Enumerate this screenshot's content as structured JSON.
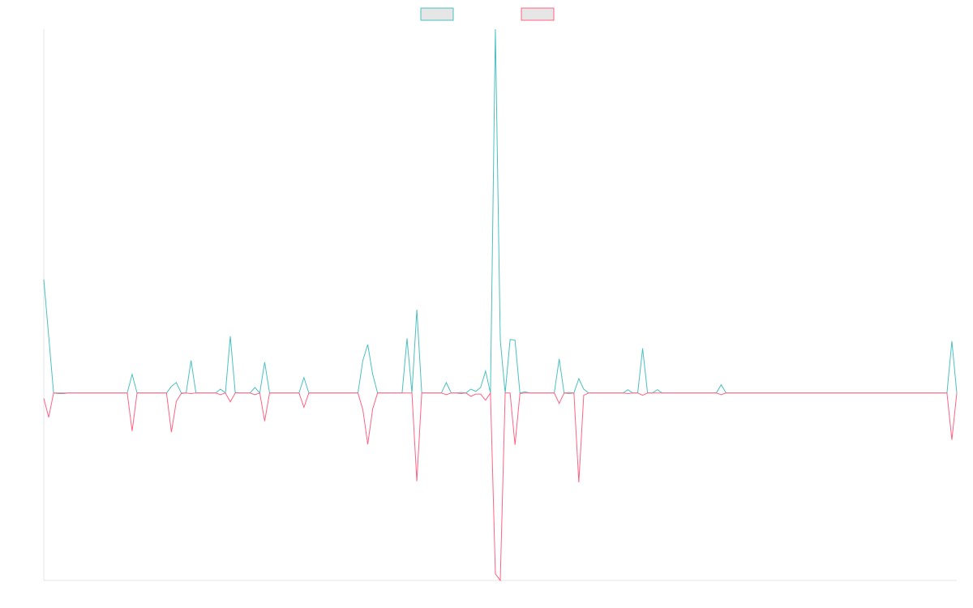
{
  "chart_data": {
    "type": "line",
    "x": [
      0,
      1,
      2,
      3,
      4,
      5,
      6,
      7,
      8,
      9,
      10,
      11,
      12,
      13,
      14,
      15,
      16,
      17,
      18,
      19,
      20,
      21,
      22,
      23,
      24,
      25,
      26,
      27,
      28,
      29,
      30,
      31,
      32,
      33,
      34,
      35,
      36,
      37,
      38,
      39,
      40,
      41,
      42,
      43,
      44,
      45,
      46,
      47,
      48,
      49,
      50,
      51,
      52,
      53,
      54,
      55,
      56,
      57,
      58,
      59,
      60,
      61,
      62,
      63,
      64,
      65,
      66,
      67,
      68,
      69,
      70,
      71,
      72,
      73,
      74,
      75,
      76,
      77,
      78,
      79,
      80,
      81,
      82,
      83,
      84,
      85,
      86,
      87,
      88,
      89,
      90,
      91,
      92,
      93,
      94,
      95,
      96,
      97,
      98,
      99,
      100,
      101,
      102,
      103,
      104,
      105,
      106,
      107,
      108,
      109,
      110,
      111,
      112,
      113,
      114,
      115,
      116,
      117,
      118,
      119,
      120,
      121,
      122,
      123,
      124,
      125,
      126,
      127,
      128,
      129,
      130,
      131,
      132,
      133,
      134,
      135,
      136,
      137,
      138,
      139,
      140,
      141,
      142,
      143,
      144,
      145,
      146,
      147,
      148,
      149,
      150,
      151,
      152,
      153,
      154,
      155,
      156,
      157,
      158,
      159,
      160,
      161,
      162,
      163,
      164,
      165,
      166,
      167,
      168,
      169,
      170,
      171,
      172,
      173,
      174,
      175,
      176,
      177,
      178,
      179,
      180,
      181,
      182,
      183,
      184,
      185,
      186
    ],
    "xlim": [
      0,
      186
    ],
    "ylim": [
      -34,
      66
    ],
    "legend": "top",
    "series": [
      {
        "color": "#4bc0c0",
        "values": [
          20.6,
          10.3,
          0,
          0,
          0,
          0,
          0,
          0,
          0,
          0,
          0,
          0,
          0,
          0,
          0,
          0,
          0,
          0,
          3.4,
          0,
          0,
          0,
          0,
          0,
          0,
          0,
          1.2,
          1.9,
          0,
          0,
          5.9,
          0,
          0,
          0,
          0,
          0,
          0.7,
          0,
          10.3,
          0.1,
          0,
          0,
          0,
          1.0,
          0,
          5.6,
          0,
          0,
          0,
          0,
          0,
          0,
          0,
          2.8,
          0,
          0,
          0,
          0,
          0,
          0,
          0,
          0,
          0,
          0,
          0,
          5.9,
          8.8,
          3.4,
          0,
          0,
          0,
          0,
          0,
          0,
          9.9,
          0,
          15.1,
          0,
          0,
          0,
          0,
          0,
          1.9,
          0,
          0,
          0.1,
          0,
          0.7,
          0.3,
          1.0,
          4.0,
          0,
          66,
          9.6,
          0,
          9.7,
          9.6,
          0,
          0.2,
          0,
          0,
          0,
          0,
          0,
          0,
          6.2,
          0,
          0.1,
          0,
          2.6,
          0.7,
          0,
          0,
          0,
          0,
          0,
          0,
          0,
          0,
          0.6,
          0,
          0,
          8.1,
          0,
          0,
          0.6,
          0,
          0,
          0,
          0,
          0,
          0,
          0,
          0,
          0,
          0,
          0,
          0,
          1.5,
          0,
          0,
          0,
          0,
          0,
          0,
          0,
          0,
          0,
          0,
          0,
          0,
          0,
          0,
          0,
          0,
          0,
          0,
          0,
          0,
          0,
          0,
          0,
          0,
          0,
          0,
          0,
          0,
          0,
          0,
          0,
          0,
          0,
          0,
          0,
          0,
          0,
          0,
          0,
          0,
          0,
          0,
          0,
          0,
          0,
          0,
          9.4,
          0
        ]
      },
      {
        "color": "#ff6384",
        "values": [
          -1.0,
          -4.4,
          0,
          -0.1,
          -0.1,
          0,
          0,
          0,
          0,
          0,
          0,
          0,
          0,
          0,
          0,
          0,
          0,
          0,
          -6.9,
          0,
          0,
          0,
          0,
          0,
          0,
          0,
          -7.1,
          -1.5,
          -0.1,
          0,
          -0.1,
          0,
          0,
          0,
          0,
          0,
          -0.3,
          0,
          -1.6,
          0,
          0,
          0,
          0,
          -0.3,
          0,
          -5.1,
          0,
          0,
          0,
          0,
          0,
          0,
          0,
          -2.6,
          0,
          0,
          0,
          0,
          0,
          0,
          0,
          0,
          0,
          0,
          0,
          -3.0,
          -9.3,
          -2.9,
          0,
          0,
          0,
          0,
          0,
          0,
          0,
          0,
          -16.0,
          0,
          0,
          0,
          0,
          0,
          -0.3,
          0,
          0,
          -0.1,
          0,
          -0.6,
          -0.2,
          -0.2,
          -1.3,
          0,
          -32.8,
          -34,
          0,
          0,
          -9.4,
          -0.1,
          0,
          0,
          0,
          0,
          0,
          0,
          0,
          -1.9,
          0,
          -0.1,
          0,
          -16.2,
          -0.4,
          0,
          0,
          0,
          0,
          0,
          0,
          0,
          0,
          -0.1,
          0,
          0,
          -0.4,
          0,
          0,
          0,
          0,
          0,
          0,
          0,
          0,
          0,
          0,
          0,
          0,
          0,
          0,
          0,
          -0.3,
          0,
          0,
          0,
          0,
          0,
          0,
          0,
          0,
          0,
          0,
          0,
          0,
          0,
          0,
          0,
          0,
          0,
          0,
          0,
          0,
          0,
          0,
          0,
          0,
          0,
          0,
          0,
          0,
          0,
          0,
          0,
          0,
          0,
          0,
          0,
          0,
          0,
          0,
          0,
          0,
          0,
          0,
          0,
          0,
          0,
          0,
          -8.5,
          0
        ]
      }
    ]
  }
}
